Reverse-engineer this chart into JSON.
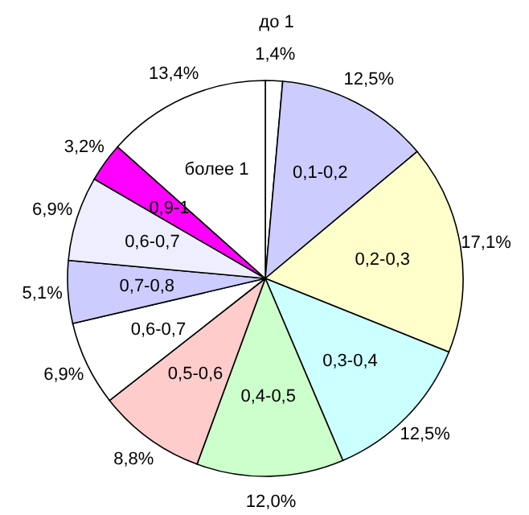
{
  "chart_data": {
    "type": "pie",
    "categories": [
      "до 1",
      "0,1-0,2",
      "0,2-0,3",
      "0,3-0,4",
      "0,4-0,5",
      "0,5-0,6",
      "0,6-0,7",
      "0,7-0,8",
      "0,6-0,7",
      "0,9-1",
      "более 1"
    ],
    "values": [
      1.4,
      12.5,
      17.1,
      12.5,
      12.0,
      8.8,
      6.9,
      5.1,
      6.9,
      3.2,
      13.4
    ],
    "value_labels": [
      "1,4%",
      "12,5%",
      "17,1%",
      "12,5%",
      "12,0%",
      "8,8%",
      "6,9%",
      "5,1%",
      "6,9%",
      "3,2%",
      "13,4%"
    ],
    "colors": [
      "#ffffff",
      "#ccccff",
      "#ffffcc",
      "#ccffff",
      "#ccffcc",
      "#ffcccc",
      "#ffffff",
      "#ccccff",
      "#eeeeff",
      "#ff00ff",
      "#ffffff"
    ]
  }
}
